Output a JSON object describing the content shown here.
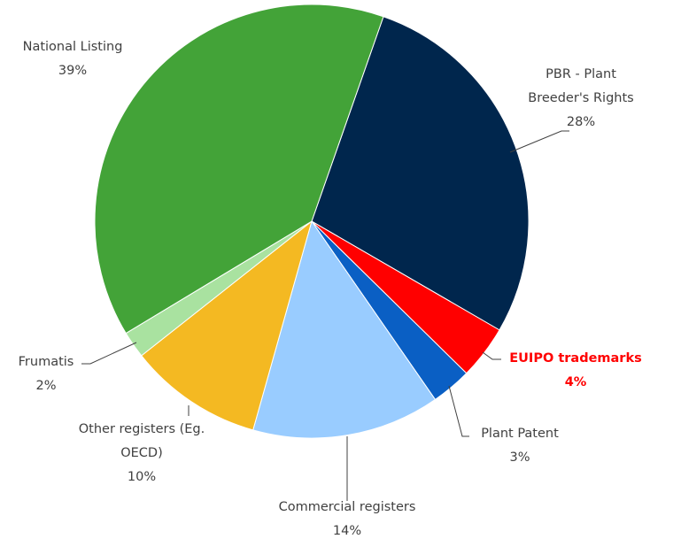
{
  "chart_data": {
    "type": "pie",
    "categories": [
      "PBR  - Plant Breeder's Rights",
      "EUIPO trademarks",
      "Plant Patent",
      "Commercial registers",
      "Other registers (Eg. OECD)",
      "Frumatis",
      "National Listing"
    ],
    "values": [
      28,
      4,
      3,
      14,
      10,
      2,
      39
    ],
    "value_labels": [
      "28%",
      "4%",
      "3%",
      "14%",
      "10%",
      "2%",
      "39%"
    ],
    "colors": [
      "#00264d",
      "#ff0000",
      "#0a5fc4",
      "#99ccff",
      "#f4b922",
      "#a9e2a0",
      "#43a338"
    ]
  }
}
